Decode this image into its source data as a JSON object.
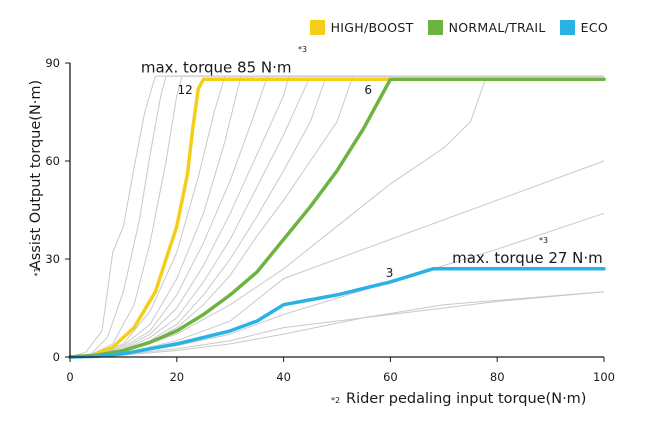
{
  "chart_data": {
    "type": "line",
    "xlabel": "Rider pedaling input torque(N·m)",
    "xlabel_note": "*2",
    "ylabel": "Assist Output torque(N·m)",
    "ylabel_note": "*1",
    "xlim": [
      0,
      100
    ],
    "ylim": [
      0,
      90
    ],
    "x_ticks": [
      "0",
      "20",
      "40",
      "60",
      "80",
      "100"
    ],
    "y_ticks": [
      "0",
      "30",
      "60",
      "90"
    ],
    "grid": false,
    "legend_placement": "top-right",
    "legend": [
      {
        "name": "HIGH/BOOST",
        "color": "#f4cf1a"
      },
      {
        "name": "NORMAL/TRAIL",
        "color": "#6db33f"
      },
      {
        "name": "ECO",
        "color": "#29b2e4"
      }
    ],
    "annotations": [
      {
        "text": "max. torque 85 N·m",
        "note": "*3",
        "x": 26,
        "y": 85
      },
      {
        "text": "max. torque 27 N·m",
        "note": "*3",
        "x": 71,
        "y": 27
      }
    ],
    "level_labels": [
      {
        "text": "12",
        "x": 22,
        "y": 82
      },
      {
        "text": "6",
        "x": 57,
        "y": 82
      },
      {
        "text": "3",
        "x": 61,
        "y": 26
      }
    ],
    "series": [
      {
        "name": "HIGH/BOOST",
        "color": "#f4cf1a",
        "points": [
          [
            0,
            0
          ],
          [
            4,
            0.5
          ],
          [
            8,
            3
          ],
          [
            12,
            9
          ],
          [
            16,
            20
          ],
          [
            20,
            40
          ],
          [
            22,
            56
          ],
          [
            23,
            70
          ],
          [
            24,
            82
          ],
          [
            25,
            85
          ],
          [
            100,
            85
          ]
        ]
      },
      {
        "name": "NORMAL/TRAIL",
        "color": "#6db33f",
        "points": [
          [
            0,
            0
          ],
          [
            5,
            0.5
          ],
          [
            10,
            2
          ],
          [
            15,
            4.5
          ],
          [
            20,
            8
          ],
          [
            25,
            13
          ],
          [
            30,
            19
          ],
          [
            35,
            26
          ],
          [
            40,
            36
          ],
          [
            45,
            46
          ],
          [
            50,
            57
          ],
          [
            55,
            70
          ],
          [
            60,
            85
          ],
          [
            100,
            85
          ]
        ]
      },
      {
        "name": "ECO",
        "color": "#29b2e4",
        "points": [
          [
            0,
            0
          ],
          [
            5,
            0.2
          ],
          [
            10,
            1
          ],
          [
            15,
            2.5
          ],
          [
            20,
            4
          ],
          [
            25,
            6
          ],
          [
            30,
            8
          ],
          [
            35,
            11
          ],
          [
            40,
            16
          ],
          [
            50,
            19
          ],
          [
            60,
            23
          ],
          [
            68,
            27
          ],
          [
            100,
            27
          ]
        ]
      }
    ],
    "reference_curves": {
      "color": "#c9c9c9",
      "curves": [
        [
          [
            0,
            0
          ],
          [
            3,
            1.5
          ],
          [
            6,
            8
          ],
          [
            8,
            32
          ],
          [
            10,
            40
          ],
          [
            12,
            58
          ],
          [
            14,
            75
          ],
          [
            16,
            86
          ],
          [
            100,
            86
          ]
        ],
        [
          [
            0,
            0
          ],
          [
            4,
            1
          ],
          [
            7,
            6
          ],
          [
            10,
            20
          ],
          [
            13,
            42
          ],
          [
            15,
            62
          ],
          [
            17,
            80
          ],
          [
            18,
            86
          ],
          [
            100,
            86
          ]
        ],
        [
          [
            0,
            0
          ],
          [
            4,
            0.8
          ],
          [
            8,
            4
          ],
          [
            12,
            16
          ],
          [
            15,
            35
          ],
          [
            18,
            60
          ],
          [
            20,
            80
          ],
          [
            21,
            86
          ],
          [
            100,
            86
          ]
        ],
        [
          [
            0,
            0
          ],
          [
            5,
            0.8
          ],
          [
            10,
            4
          ],
          [
            15,
            14
          ],
          [
            20,
            32
          ],
          [
            24,
            55
          ],
          [
            27,
            75
          ],
          [
            29,
            86
          ],
          [
            100,
            86
          ]
        ],
        [
          [
            0,
            0
          ],
          [
            5,
            0.6
          ],
          [
            10,
            3.5
          ],
          [
            15,
            10
          ],
          [
            20,
            24
          ],
          [
            25,
            44
          ],
          [
            29,
            66
          ],
          [
            32,
            86
          ],
          [
            100,
            86
          ]
        ],
        [
          [
            0,
            0
          ],
          [
            5,
            0.6
          ],
          [
            10,
            3
          ],
          [
            15,
            8
          ],
          [
            20,
            19
          ],
          [
            25,
            35
          ],
          [
            30,
            54
          ],
          [
            34,
            72
          ],
          [
            37,
            86
          ],
          [
            100,
            86
          ]
        ],
        [
          [
            0,
            0
          ],
          [
            5,
            0.5
          ],
          [
            10,
            2.5
          ],
          [
            15,
            7
          ],
          [
            20,
            15
          ],
          [
            25,
            28
          ],
          [
            30,
            44
          ],
          [
            35,
            62
          ],
          [
            40,
            80
          ],
          [
            41,
            86
          ],
          [
            100,
            86
          ]
        ],
        [
          [
            0,
            0
          ],
          [
            5,
            0.5
          ],
          [
            10,
            2.2
          ],
          [
            15,
            6
          ],
          [
            20,
            12
          ],
          [
            25,
            23
          ],
          [
            30,
            36
          ],
          [
            35,
            52
          ],
          [
            40,
            68
          ],
          [
            45,
            86
          ],
          [
            100,
            86
          ]
        ],
        [
          [
            0,
            0
          ],
          [
            5,
            0.5
          ],
          [
            10,
            2
          ],
          [
            15,
            5
          ],
          [
            20,
            10
          ],
          [
            25,
            19
          ],
          [
            30,
            30
          ],
          [
            35,
            43
          ],
          [
            40,
            57
          ],
          [
            45,
            72
          ],
          [
            48,
            86
          ],
          [
            100,
            86
          ]
        ],
        [
          [
            0,
            0
          ],
          [
            5,
            0.4
          ],
          [
            10,
            1.8
          ],
          [
            15,
            4.5
          ],
          [
            20,
            9
          ],
          [
            25,
            16
          ],
          [
            30,
            25
          ],
          [
            35,
            37
          ],
          [
            40,
            48
          ],
          [
            45,
            60
          ],
          [
            50,
            72
          ],
          [
            53,
            86
          ],
          [
            100,
            86
          ]
        ],
        [
          [
            0,
            0
          ],
          [
            10,
            1.5
          ],
          [
            20,
            7
          ],
          [
            30,
            16
          ],
          [
            40,
            27
          ],
          [
            50,
            40
          ],
          [
            60,
            53
          ],
          [
            70,
            64
          ],
          [
            75,
            72
          ],
          [
            78,
            86
          ],
          [
            100,
            86
          ]
        ],
        [
          [
            0,
            0
          ],
          [
            10,
            1.2
          ],
          [
            20,
            5
          ],
          [
            30,
            11
          ],
          [
            40,
            24
          ],
          [
            60,
            36
          ],
          [
            80,
            48
          ],
          [
            100,
            60
          ]
        ],
        [
          [
            0,
            0
          ],
          [
            10,
            1
          ],
          [
            20,
            3.5
          ],
          [
            30,
            7
          ],
          [
            40,
            13
          ],
          [
            60,
            23
          ],
          [
            80,
            33
          ],
          [
            100,
            44
          ]
        ],
        [
          [
            0,
            0
          ],
          [
            10,
            0.8
          ],
          [
            20,
            2.5
          ],
          [
            30,
            5
          ],
          [
            40,
            9
          ],
          [
            60,
            13
          ],
          [
            80,
            17
          ],
          [
            100,
            20
          ]
        ],
        [
          [
            0,
            0
          ],
          [
            10,
            0.6
          ],
          [
            20,
            2
          ],
          [
            30,
            4
          ],
          [
            40,
            7
          ],
          [
            55,
            12
          ],
          [
            70,
            16
          ],
          [
            85,
            18
          ],
          [
            100,
            20
          ]
        ]
      ]
    }
  }
}
